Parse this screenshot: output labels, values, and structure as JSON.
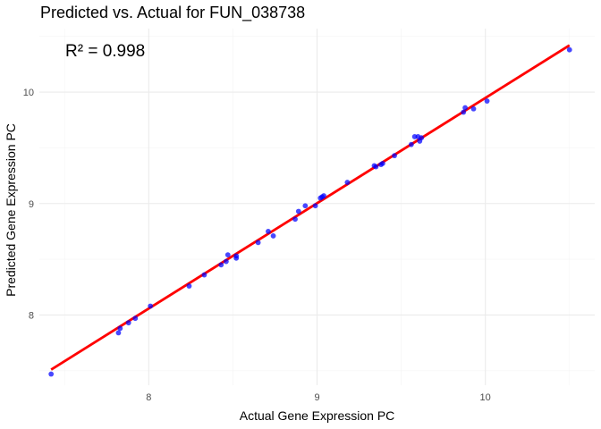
{
  "chart_data": {
    "type": "scatter",
    "title": "Predicted vs. Actual for FUN_038738",
    "xlabel": "Actual Gene Expression PC",
    "ylabel": "Predicted Gene Expression PC",
    "annotation": "R² = 0.998",
    "xlim": [
      7.35,
      10.65
    ],
    "ylim": [
      7.37,
      10.57
    ],
    "x_ticks": [
      8,
      9,
      10
    ],
    "y_ticks": [
      8,
      9,
      10
    ],
    "x_minor": [
      7.5,
      8.5,
      9.5,
      10.5
    ],
    "y_minor": [
      7.5,
      8.5,
      9.5,
      10.5
    ],
    "grid": true,
    "point_color": "#0000ff",
    "line_color": "#ff0000",
    "fit_line": {
      "x": [
        7.42,
        10.5
      ],
      "y": [
        7.51,
        10.42
      ]
    },
    "points": [
      {
        "x": 7.42,
        "y": 7.47
      },
      {
        "x": 7.82,
        "y": 7.84
      },
      {
        "x": 7.83,
        "y": 7.88
      },
      {
        "x": 7.88,
        "y": 7.93
      },
      {
        "x": 7.92,
        "y": 7.97
      },
      {
        "x": 8.01,
        "y": 8.08
      },
      {
        "x": 8.24,
        "y": 8.26
      },
      {
        "x": 8.33,
        "y": 8.36
      },
      {
        "x": 8.43,
        "y": 8.45
      },
      {
        "x": 8.46,
        "y": 8.48
      },
      {
        "x": 8.47,
        "y": 8.54
      },
      {
        "x": 8.52,
        "y": 8.51
      },
      {
        "x": 8.52,
        "y": 8.53
      },
      {
        "x": 8.65,
        "y": 8.65
      },
      {
        "x": 8.71,
        "y": 8.75
      },
      {
        "x": 8.74,
        "y": 8.71
      },
      {
        "x": 8.87,
        "y": 8.86
      },
      {
        "x": 8.89,
        "y": 8.93
      },
      {
        "x": 8.93,
        "y": 8.98
      },
      {
        "x": 8.99,
        "y": 8.98
      },
      {
        "x": 9.02,
        "y": 9.05
      },
      {
        "x": 9.03,
        "y": 9.06
      },
      {
        "x": 9.04,
        "y": 9.07
      },
      {
        "x": 9.18,
        "y": 9.19
      },
      {
        "x": 9.34,
        "y": 9.34
      },
      {
        "x": 9.35,
        "y": 9.33
      },
      {
        "x": 9.38,
        "y": 9.35
      },
      {
        "x": 9.39,
        "y": 9.36
      },
      {
        "x": 9.46,
        "y": 9.43
      },
      {
        "x": 9.56,
        "y": 9.53
      },
      {
        "x": 9.58,
        "y": 9.6
      },
      {
        "x": 9.6,
        "y": 9.6
      },
      {
        "x": 9.61,
        "y": 9.56
      },
      {
        "x": 9.62,
        "y": 9.59
      },
      {
        "x": 9.87,
        "y": 9.82
      },
      {
        "x": 9.88,
        "y": 9.86
      },
      {
        "x": 9.93,
        "y": 9.85
      },
      {
        "x": 10.01,
        "y": 9.92
      },
      {
        "x": 10.5,
        "y": 10.38
      }
    ]
  }
}
